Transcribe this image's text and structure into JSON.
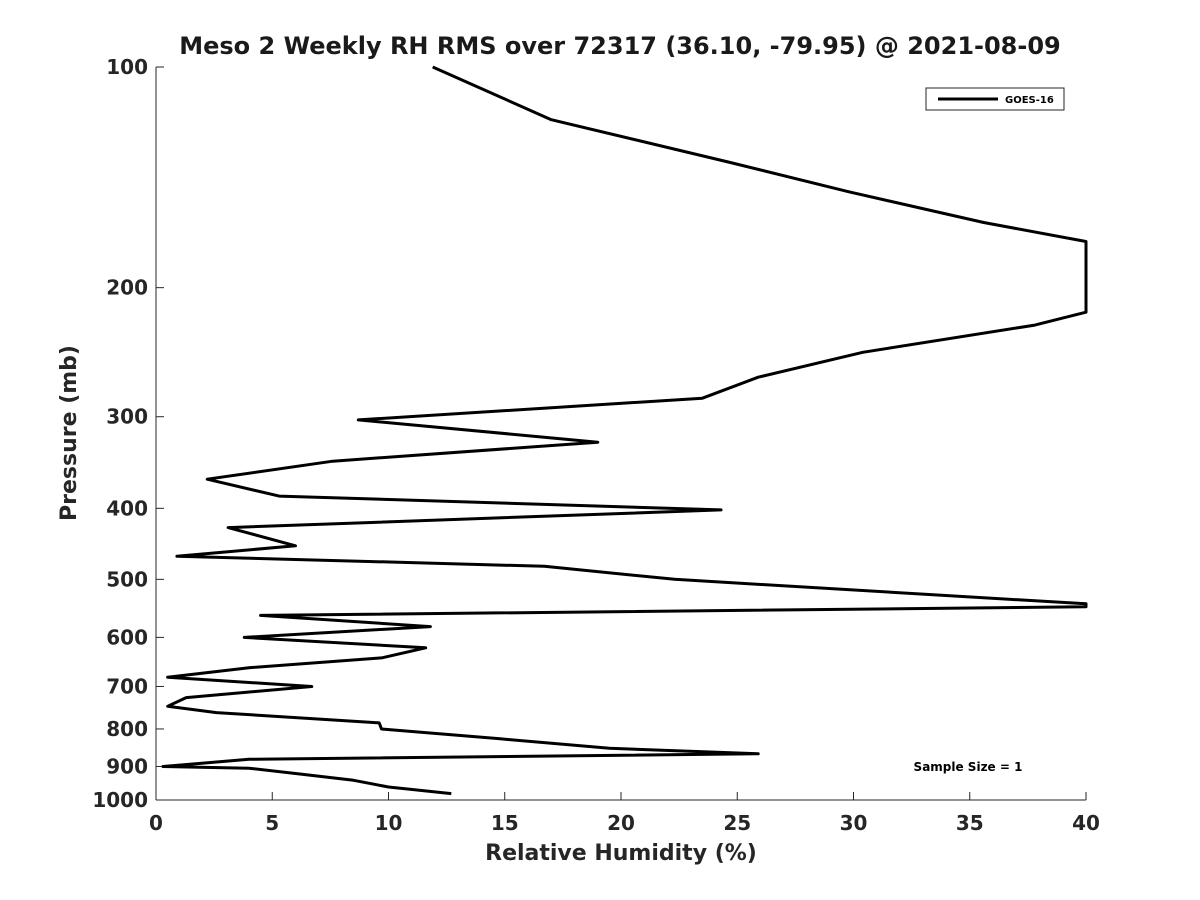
{
  "chart_data": {
    "type": "line",
    "title": "Meso 2 Weekly RH RMS over 72317 (36.10, -79.95) @ 2021-08-09",
    "xlabel": "Relative Humidity (%)",
    "ylabel": "Pressure (mb)",
    "xlim": [
      0,
      40
    ],
    "ylim": [
      1000,
      100
    ],
    "y_scale": "log",
    "y_direction": "reversed",
    "x_ticks": [
      0,
      5,
      10,
      15,
      20,
      25,
      30,
      35,
      40
    ],
    "y_ticks": [
      100,
      200,
      300,
      400,
      500,
      600,
      700,
      800,
      900,
      1000
    ],
    "grid": false,
    "legend_position": "top-right",
    "annotation": "Sample Size = 1",
    "series": [
      {
        "name": "GOES-16",
        "color": "#000000",
        "points": [
          [
            12.7,
            980
          ],
          [
            10.0,
            960
          ],
          [
            8.5,
            940
          ],
          [
            6.0,
            920
          ],
          [
            4.0,
            905
          ],
          [
            0.3,
            900
          ],
          [
            4.0,
            880
          ],
          [
            25.9,
            865
          ],
          [
            19.5,
            850
          ],
          [
            14.8,
            825
          ],
          [
            9.7,
            800
          ],
          [
            9.6,
            785
          ],
          [
            2.6,
            760
          ],
          [
            0.5,
            745
          ],
          [
            1.3,
            725
          ],
          [
            6.7,
            700
          ],
          [
            0.5,
            680
          ],
          [
            4.0,
            660
          ],
          [
            9.7,
            640
          ],
          [
            11.6,
            620
          ],
          [
            3.8,
            600
          ],
          [
            11.8,
            580
          ],
          [
            4.5,
            560
          ],
          [
            40.0,
            545
          ],
          [
            40.0,
            540
          ],
          [
            22.3,
            500
          ],
          [
            16.7,
            480
          ],
          [
            0.9,
            465
          ],
          [
            6.0,
            450
          ],
          [
            3.1,
            425
          ],
          [
            24.3,
            402
          ],
          [
            5.3,
            385
          ],
          [
            2.2,
            365
          ],
          [
            7.6,
            345
          ],
          [
            19.0,
            325
          ],
          [
            8.7,
            303
          ],
          [
            23.5,
            283
          ],
          [
            25.9,
            265
          ],
          [
            30.4,
            245
          ],
          [
            37.8,
            225
          ],
          [
            40.0,
            216
          ],
          [
            40.0,
            173
          ],
          [
            35.6,
            163
          ],
          [
            29.8,
            148
          ],
          [
            24.7,
            135
          ],
          [
            17.0,
            118
          ],
          [
            11.9,
            100
          ]
        ]
      }
    ]
  }
}
